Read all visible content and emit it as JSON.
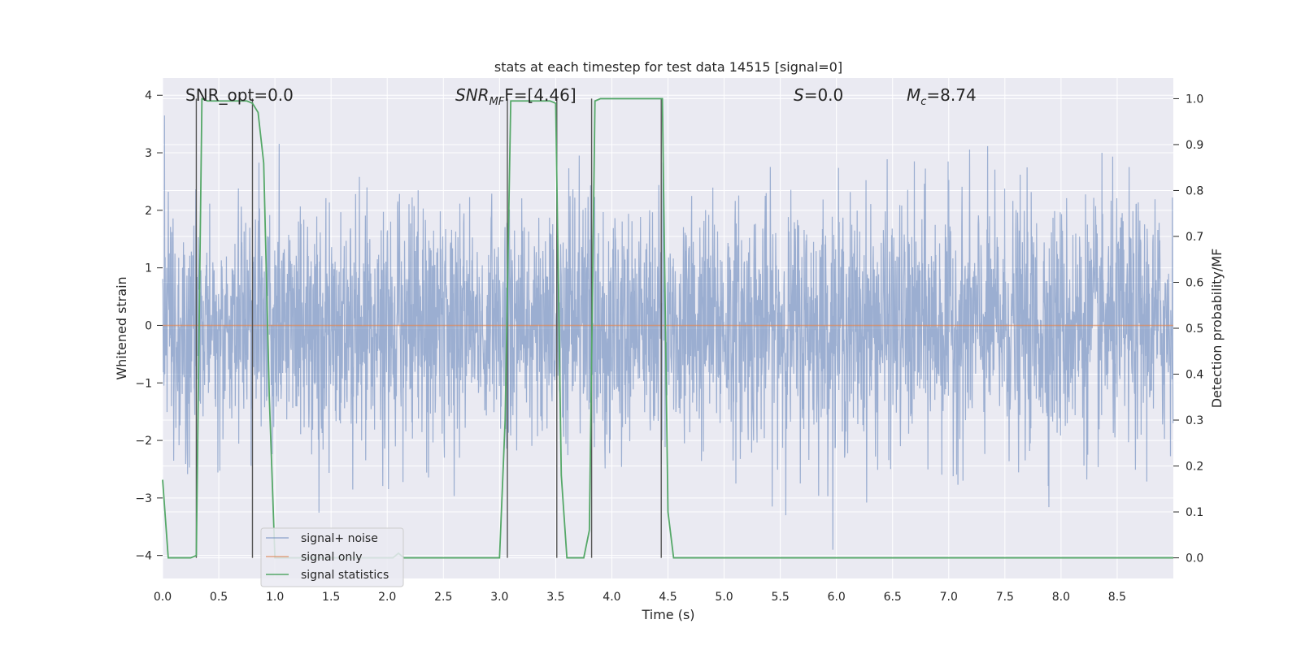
{
  "chart_data": {
    "type": "line",
    "title": "stats at each timestep for test data 14515 [signal=0]",
    "xlabel": "Time (s)",
    "ylabel": "Whitened strain",
    "y2label": "Detection probability/MF",
    "xlim": [
      0,
      9.0
    ],
    "ylim": [
      -4.4,
      4.3
    ],
    "y2lim": [
      -0.045,
      1.045
    ],
    "xticks": [
      "0.0",
      "0.5",
      "1.0",
      "1.5",
      "2.0",
      "2.5",
      "3.0",
      "3.5",
      "4.0",
      "4.5",
      "5.0",
      "5.5",
      "6.0",
      "6.5",
      "7.0",
      "7.5",
      "8.0",
      "8.5"
    ],
    "yticks": [
      "−4",
      "−3",
      "−2",
      "−1",
      "0",
      "1",
      "2",
      "3",
      "4"
    ],
    "y2ticks": [
      "0.0",
      "0.1",
      "0.2",
      "0.3",
      "0.4",
      "0.5",
      "0.6",
      "0.7",
      "0.8",
      "0.9",
      "1.0"
    ],
    "grid": true,
    "legend_position": "lower-left",
    "annotations": {
      "snr_opt": "SNR_opt=0.0",
      "snr_mf_sym": "SNR",
      "snr_mf_sub": "MF",
      "snr_mf_val": "F=[4.46]",
      "s_sym": "S",
      "s_val": "=0.0",
      "mc_sym": "M",
      "mc_sub": "c",
      "mc_val": "=8.74"
    },
    "series": [
      {
        "name": "signal+ noise",
        "color": "#4c72b0",
        "description": "whitened noisy strain, approx. Gaussian with unit variance",
        "envelope": {
          "typical_max": 2.0,
          "typical_min": -2.0,
          "peak_max": 3.95,
          "peak_min": -3.9
        }
      },
      {
        "name": "signal only",
        "color": "#dd8452",
        "values_constant": 0
      },
      {
        "name": "signal statistics",
        "color": "#55a868",
        "x": [
          0.0,
          0.05,
          0.1,
          0.15,
          0.2,
          0.25,
          0.3,
          0.35,
          0.4,
          0.45,
          0.5,
          0.55,
          0.6,
          0.65,
          0.7,
          0.75,
          0.8,
          0.85,
          0.9,
          0.95,
          1.0,
          1.05,
          1.1,
          1.15,
          1.2,
          1.5,
          2.0,
          2.05,
          2.1,
          2.15,
          2.2,
          2.5,
          3.0,
          3.05,
          3.1,
          3.15,
          3.2,
          3.3,
          3.4,
          3.45,
          3.5,
          3.55,
          3.6,
          3.65,
          3.7,
          3.75,
          3.8,
          3.85,
          3.9,
          4.0,
          4.2,
          4.4,
          4.45,
          4.5,
          4.55,
          4.6,
          5.0,
          9.0
        ],
        "y": [
          0.17,
          0.0,
          0.0,
          0.0,
          0.0,
          0.0,
          0.005,
          1.0,
          0.995,
          0.995,
          0.995,
          0.995,
          0.995,
          0.995,
          0.995,
          0.995,
          0.99,
          0.97,
          0.86,
          0.35,
          0.0,
          0.0,
          0.0,
          0.0,
          0.0,
          0.0,
          0.0,
          0.0,
          0.01,
          0.0,
          0.0,
          0.0,
          0.0,
          0.3,
          0.995,
          0.995,
          0.995,
          0.995,
          0.995,
          0.995,
          0.99,
          0.18,
          0.0,
          0.0,
          0.0,
          0.0,
          0.06,
          0.995,
          1.0,
          1.0,
          1.0,
          1.0,
          1.0,
          0.1,
          0.0,
          0.0,
          0.0,
          0.0
        ]
      }
    ],
    "vertical_lines": [
      0.3,
      0.8,
      3.07,
      3.51,
      3.82,
      4.44
    ]
  }
}
